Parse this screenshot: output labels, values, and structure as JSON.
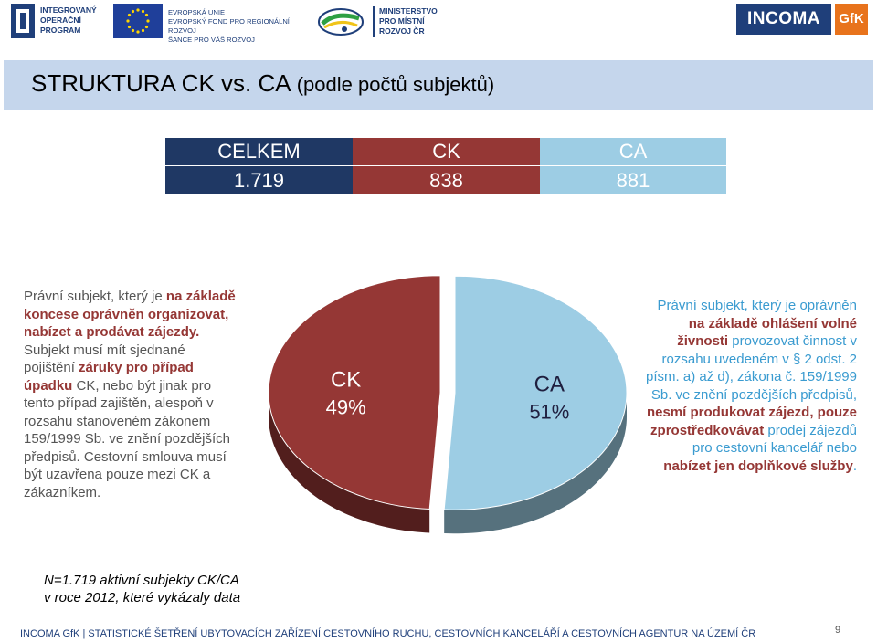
{
  "header": {
    "iop_lines": [
      "INTEGROVANÝ",
      "OPERAČNÍ",
      "PROGRAM"
    ],
    "eu_lines": [
      "EVROPSKÁ UNIE",
      "EVROPSKÝ FOND PRO REGIONÁLNÍ ROZVOJ",
      "ŠANCE PRO VÁŠ ROZVOJ"
    ],
    "ministry_lines": [
      "MINISTERSTVO",
      "PRO MÍSTNÍ",
      "ROZVOJ ČR"
    ],
    "incoma": "INCOMA",
    "gfk": "GfK"
  },
  "title": {
    "main": "STRUKTURA CK vs. CA",
    "sub": " (podle počtů subjektů)"
  },
  "totals": {
    "headers": [
      "CELKEM",
      "CK",
      "CA"
    ],
    "values": [
      "1.719",
      "838",
      "881"
    ]
  },
  "left_description": {
    "p1": "Právní subjekt, který je ",
    "b1": "na základě koncese oprávněn organizovat, nabízet a prodávat zájezdy.",
    "p2": " Subjekt musí mít sjednané pojištění ",
    "b2": "záruky pro případ úpadku",
    "p3": " CK, nebo být jinak pro tento případ zajištěn, alespoň v rozsahu stanoveném zákonem 159/1999 Sb. ve znění pozdějších předpisů. Cestovní smlouva musí být uzavřena pouze mezi CK a zákazníkem."
  },
  "right_description": {
    "p1": "Právní subjekt, který je oprávněn ",
    "b1": "na základě ohlášení volné živnosti",
    "p2": " provozovat činnost v rozsahu uvedeném v § 2 odst. 2 písm. a) až d), zákona č. 159/1999 Sb. ve znění pozdějších předpisů, ",
    "b2": "nesmí produkovat zájezd, pouze zprostředkovávat",
    "p3": " prodej zájezdů pro cestovní kancelář nebo ",
    "b3": "nabízet jen doplňkové služby",
    "p4": "."
  },
  "chart_data": {
    "type": "pie",
    "style": "3d-exploded",
    "slices": [
      {
        "label": "CK",
        "value": 49,
        "display": "49%",
        "color": "#953735"
      },
      {
        "label": "CA",
        "value": 51,
        "display": "51%",
        "color": "#9dcde4"
      }
    ],
    "counts": {
      "CK": 838,
      "CA": 881,
      "total": 1719
    }
  },
  "note": {
    "line1": "N=1.719 aktivní subjekty CK/CA",
    "line2": "v roce 2012, které vykázaly data"
  },
  "footer": "INCOMA GfK | STATISTICKÉ ŠETŘENÍ UBYTOVACÍCH ZAŘÍZENÍ CESTOVNÍHO RUCHU, CESTOVNÍCH KANCELÁŘÍ A CESTOVNÍCH AGENTUR NA ÚZEMÍ ČR",
  "page_number": "9"
}
